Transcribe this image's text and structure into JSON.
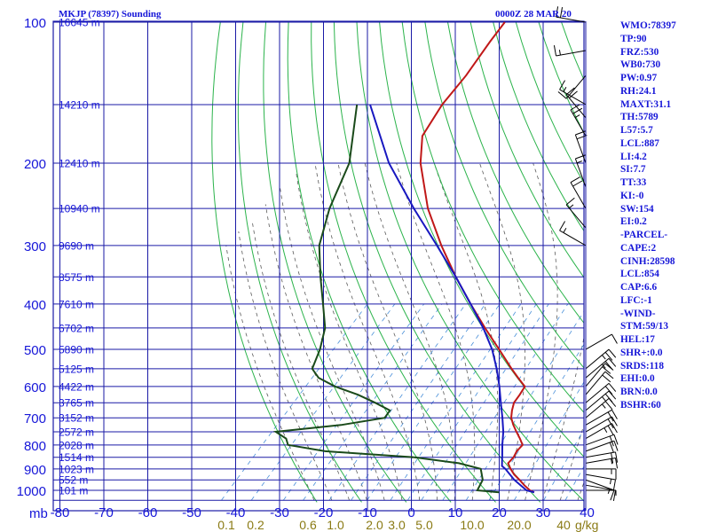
{
  "header": {
    "station": "MKJP (78397) Sounding",
    "time": "0000Z 28 MAR 20"
  },
  "colors": {
    "grid": "#1a1aa6",
    "dry_adiabat": "#2bb34b",
    "moist_adiabat": "#5a5a5a",
    "mixing_ratio": "#4a90d9",
    "temperature": "#c01818",
    "dewpoint": "#1a4a1a",
    "parcel": "#1818c0",
    "text": "#1616d8"
  },
  "indices": [
    "WMO:78397",
    "TP:90",
    "FRZ:530",
    "WB0:730",
    "PW:0.97",
    "RH:24.1",
    "MAXT:31.1",
    "TH:5789",
    "L57:5.7",
    "LCL:887",
    "LI:4.2",
    "SI:7.7",
    "TT:33",
    "KI:-0",
    "SW:154",
    "EI:0.2",
    "-PARCEL-",
    "CAPE:2",
    "CINH:28598",
    "LCL:854",
    "CAP:6.6",
    "LFC:-1",
    "-WIND-",
    "STM:59/13",
    "HEL:17",
    "SHR+:0.0",
    "SRDS:118",
    "EHI:0.0",
    "BRN:0.0",
    "BSHR:60"
  ],
  "chart_data": {
    "type": "line",
    "diagram": "skew-t log-p",
    "pressure_unit_label": "mb",
    "temperature_ticks": [
      -80,
      -70,
      -60,
      -50,
      -40,
      -30,
      -20,
      -10,
      0,
      10,
      20,
      30,
      40
    ],
    "pressure_ticks": [
      100,
      200,
      300,
      400,
      500,
      600,
      700,
      800,
      900,
      1000
    ],
    "mixing_ratio_ticks": [
      "0.1",
      "0.2",
      "0.6",
      "1.0",
      "2.0",
      "3.0",
      "5.0",
      "10.0",
      "20.0",
      "40"
    ],
    "mixing_ratio_unit": "g/kg",
    "height_labels": [
      {
        "p": 100,
        "text": "16645 m"
      },
      {
        "p": 150,
        "text": "14210 m"
      },
      {
        "p": 200,
        "text": "12410 m"
      },
      {
        "p": 250,
        "text": "10940 m"
      },
      {
        "p": 300,
        "text": "9690 m"
      },
      {
        "p": 350,
        "text": "8575 m"
      },
      {
        "p": 400,
        "text": "7610 m"
      },
      {
        "p": 450,
        "text": "6702 m"
      },
      {
        "p": 500,
        "text": "5890 m"
      },
      {
        "p": 550,
        "text": "5125 m"
      },
      {
        "p": 600,
        "text": "4422 m"
      },
      {
        "p": 650,
        "text": "3765 m"
      },
      {
        "p": 700,
        "text": "3152 m"
      },
      {
        "p": 750,
        "text": "2572 m"
      },
      {
        "p": 800,
        "text": "2028 m"
      },
      {
        "p": 850,
        "text": "1514 m"
      },
      {
        "p": 900,
        "text": "1023 m"
      },
      {
        "p": 950,
        "text": "552 m"
      },
      {
        "p": 1000,
        "text": "101 m"
      }
    ],
    "series": [
      {
        "key": "temperature",
        "p": [
          1010,
          1000,
          975,
          950,
          925,
          900,
          875,
          850,
          825,
          800,
          775,
          750,
          725,
          700,
          675,
          650,
          625,
          600,
          575,
          550,
          500,
          450,
          400,
          350,
          300,
          250,
          200,
          175,
          150,
          130,
          110,
          100
        ],
        "t": [
          28.4,
          27.0,
          24.6,
          22.4,
          20.0,
          18.0,
          16.2,
          16.2,
          15.6,
          15.6,
          13.6,
          11.4,
          9.2,
          7.2,
          5.8,
          4.6,
          4.2,
          3.6,
          0.2,
          -3.2,
          -10.2,
          -18.0,
          -26.4,
          -35.6,
          -45.6,
          -56.6,
          -68.0,
          -73.4,
          -75.6,
          -76.4,
          -78.2,
          -79.0
        ]
      },
      {
        "key": "dewpoint",
        "p": [
          1010,
          1000,
          950,
          900,
          875,
          850,
          825,
          800,
          775,
          750,
          725,
          700,
          675,
          650,
          625,
          600,
          575,
          550,
          500,
          450,
          400,
          350,
          300,
          250,
          200,
          150
        ],
        "td": [
          20.4,
          15.0,
          14.0,
          11.2,
          5.0,
          -6.4,
          -28.0,
          -37.8,
          -39.6,
          -43.4,
          -30.0,
          -21.6,
          -22.0,
          -27.0,
          -32.6,
          -39.6,
          -45.2,
          -48.6,
          -51.0,
          -54.4,
          -60.0,
          -66.4,
          -73.4,
          -79.0,
          -84.2,
          -95.0
        ]
      },
      {
        "key": "parcel",
        "p": [
          1010,
          1000,
          950,
          900,
          887,
          854,
          850,
          800,
          750,
          700,
          650,
          600,
          550,
          500,
          450,
          400,
          350,
          300,
          250,
          200,
          150
        ],
        "t": [
          28.4,
          26.2,
          21.2,
          16.8,
          15.4,
          13.8,
          13.6,
          11.0,
          8.4,
          5.2,
          1.6,
          -2.2,
          -6.6,
          -11.8,
          -18.4,
          -26.4,
          -35.6,
          -46.6,
          -59.8,
          -75.2,
          -92.0
        ]
      }
    ],
    "winds": [
      {
        "p": 1000,
        "dir": 90,
        "spd": 5
      },
      {
        "p": 975,
        "dir": 100,
        "spd": 10
      },
      {
        "p": 950,
        "dir": 110,
        "spd": 15
      },
      {
        "p": 925,
        "dir": 100,
        "spd": 15
      },
      {
        "p": 900,
        "dir": 90,
        "spd": 15
      },
      {
        "p": 875,
        "dir": 80,
        "spd": 15
      },
      {
        "p": 850,
        "dir": 80,
        "spd": 20
      },
      {
        "p": 825,
        "dir": 70,
        "spd": 20
      },
      {
        "p": 800,
        "dir": 70,
        "spd": 20
      },
      {
        "p": 775,
        "dir": 60,
        "spd": 25
      },
      {
        "p": 750,
        "dir": 60,
        "spd": 20
      },
      {
        "p": 725,
        "dir": 60,
        "spd": 20
      },
      {
        "p": 700,
        "dir": 50,
        "spd": 25
      },
      {
        "p": 675,
        "dir": 50,
        "spd": 25
      },
      {
        "p": 650,
        "dir": 50,
        "spd": 20
      },
      {
        "p": 625,
        "dir": 40,
        "spd": 20
      },
      {
        "p": 600,
        "dir": 40,
        "spd": 20
      },
      {
        "p": 575,
        "dir": 50,
        "spd": 25
      },
      {
        "p": 550,
        "dir": 50,
        "spd": 25
      },
      {
        "p": 500,
        "dir": 60,
        "spd": 10
      },
      {
        "p": 300,
        "dir": 300,
        "spd": 15
      },
      {
        "p": 275,
        "dir": 320,
        "spd": 15
      },
      {
        "p": 250,
        "dir": 330,
        "spd": 20
      },
      {
        "p": 225,
        "dir": 340,
        "spd": 15
      },
      {
        "p": 200,
        "dir": 340,
        "spd": 20
      },
      {
        "p": 175,
        "dir": 330,
        "spd": 25
      },
      {
        "p": 160,
        "dir": 320,
        "spd": 20
      },
      {
        "p": 150,
        "dir": 300,
        "spd": 15
      },
      {
        "p": 130,
        "dir": 220,
        "spd": 10
      },
      {
        "p": 115,
        "dir": 260,
        "spd": 15
      },
      {
        "p": 100,
        "dir": 280,
        "spd": 20
      }
    ]
  }
}
